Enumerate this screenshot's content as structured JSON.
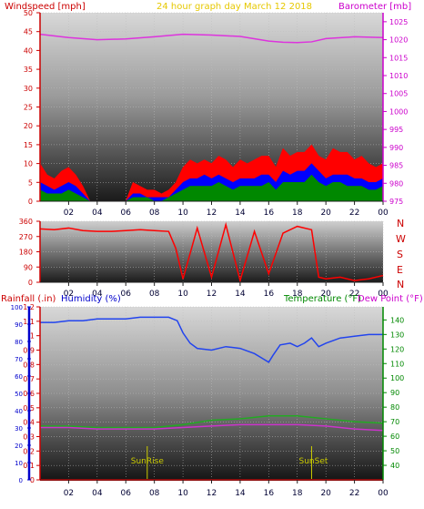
{
  "colors": {
    "wind_axis": "#cc0000",
    "baro_axis": "#cc00cc",
    "title": "#e6c800",
    "humidity_axis": "#0000cc",
    "rain_axis": "#cc0000",
    "temp_axis": "#008800",
    "wind_speed": "#ff0000",
    "wind_avg": "#0000ff",
    "wind_low": "#008800",
    "barometer": "#dd33dd",
    "direction": "#ff0000",
    "humidity": "#2244ee",
    "temperature": "#22aa22",
    "dewpoint": "#cc33cc",
    "sun_marker": "#cccc00"
  },
  "panel1": {
    "title": "24 hour graph day   March 12 2018",
    "left_label": "Windspeed [mph]",
    "right_label": "Barometer [mb]"
  },
  "panel2": {
    "direction_labels": [
      "N",
      "W",
      "S",
      "E",
      "N"
    ]
  },
  "panel3": {
    "rain_label": "Rainfall (.in)",
    "humidity_label": "Humidity (%)",
    "temp_label": "Temperature (°F)",
    "dew_label": "Dew Point (°F)",
    "sunrise_label": "SunRise",
    "sunset_label": "SunSet"
  },
  "chart_data": [
    {
      "type": "area",
      "title": "24 hour graph day   March 12 2018",
      "ylabel": "Windspeed [mph]",
      "ylim": [
        0,
        50
      ],
      "y_ticks": [
        0,
        5,
        10,
        15,
        20,
        25,
        30,
        35,
        40,
        45,
        50
      ],
      "y2label": "Barometer [mb]",
      "y2lim": [
        975,
        1027.5
      ],
      "y2_ticks": [
        975,
        980,
        985,
        990,
        995,
        1000,
        1005,
        1010,
        1015,
        1020,
        1025
      ],
      "x_ticks": [
        "02",
        "04",
        "06",
        "08",
        "10",
        "12",
        "14",
        "16",
        "18",
        "20",
        "22",
        "00"
      ],
      "xlim": [
        0,
        24
      ],
      "series": [
        {
          "axis": "y",
          "x": [
            0,
            0.5,
            1,
            1.5,
            2,
            2.5,
            3,
            3.5,
            4,
            4.5,
            5,
            5.5,
            6,
            6.5,
            7,
            7.5,
            8,
            8.5,
            9,
            9.5,
            10,
            10.5,
            11,
            11.5,
            12,
            12.5,
            13,
            13.5,
            14,
            14.5,
            15,
            15.5,
            16,
            16.5,
            17,
            17.5,
            18,
            18.5,
            19,
            19.5,
            20,
            20.5,
            21,
            21.5,
            22,
            22.5,
            23,
            23.5,
            24
          ],
          "values": [
            10,
            7,
            6,
            8,
            9,
            7,
            4,
            0,
            0,
            0,
            0,
            0,
            0,
            5,
            4,
            3,
            3,
            2,
            3,
            5,
            9,
            11,
            10,
            11,
            10,
            12,
            11,
            9,
            11,
            10,
            11,
            12,
            12,
            9,
            14,
            12,
            13,
            13,
            15,
            12,
            11,
            14,
            13,
            13,
            11,
            12,
            10,
            9,
            10
          ]
        },
        {
          "axis": "y",
          "x": [
            0,
            0.5,
            1,
            1.5,
            2,
            2.5,
            3,
            3.5,
            4,
            4.5,
            5,
            5.5,
            6,
            6.5,
            7,
            7.5,
            8,
            8.5,
            9,
            9.5,
            10,
            10.5,
            11,
            11.5,
            12,
            12.5,
            13,
            13.5,
            14,
            14.5,
            15,
            15.5,
            16,
            16.5,
            17,
            17.5,
            18,
            18.5,
            19,
            19.5,
            20,
            20.5,
            21,
            21.5,
            22,
            22.5,
            23,
            23.5,
            24
          ],
          "values": [
            5,
            4,
            3,
            4,
            5,
            4,
            2,
            0,
            0,
            0,
            0,
            0,
            0,
            2,
            2,
            1,
            1,
            1,
            1,
            3,
            5,
            6,
            6,
            7,
            6,
            7,
            6,
            5,
            6,
            6,
            6,
            7,
            7,
            5,
            8,
            7,
            8,
            8,
            10,
            8,
            6,
            7,
            7,
            7,
            6,
            6,
            5,
            5,
            6
          ]
        },
        {
          "axis": "y",
          "x": [
            0,
            0.5,
            1,
            1.5,
            2,
            2.5,
            3,
            3.5,
            4,
            4.5,
            5,
            5.5,
            6,
            6.5,
            7,
            7.5,
            8,
            8.5,
            9,
            9.5,
            10,
            10.5,
            11,
            11.5,
            12,
            12.5,
            13,
            13.5,
            14,
            14.5,
            15,
            15.5,
            16,
            16.5,
            17,
            17.5,
            18,
            18.5,
            19,
            19.5,
            20,
            20.5,
            21,
            21.5,
            22,
            22.5,
            23,
            23.5,
            24
          ],
          "values": [
            3,
            2,
            2,
            2,
            3,
            2,
            1,
            0,
            0,
            0,
            0,
            0,
            0,
            1,
            1,
            1,
            0,
            0,
            1,
            2,
            3,
            4,
            4,
            4,
            4,
            5,
            4,
            3,
            4,
            4,
            4,
            4,
            5,
            3,
            5,
            5,
            5,
            5,
            7,
            5,
            4,
            5,
            5,
            4,
            4,
            4,
            3,
            3,
            4
          ]
        },
        {
          "axis": "y2",
          "x": [
            0,
            2,
            4,
            6,
            8,
            10,
            12,
            14,
            16,
            17,
            18,
            19,
            20,
            22,
            24
          ],
          "values": [
            1021.5,
            1020.6,
            1020.0,
            1020.2,
            1020.8,
            1021.5,
            1021.3,
            1020.9,
            1019.6,
            1019.3,
            1019.2,
            1019.4,
            1020.3,
            1020.8,
            1020.6
          ]
        }
      ]
    },
    {
      "type": "line",
      "ylim": [
        0,
        360
      ],
      "y_ticks": [
        0,
        90,
        180,
        270,
        360
      ],
      "x_ticks": [
        "02",
        "04",
        "06",
        "08",
        "10",
        "12",
        "14",
        "16",
        "18",
        "20",
        "22",
        "00"
      ],
      "xlim": [
        0,
        24
      ],
      "series": [
        {
          "x": [
            0,
            1,
            2,
            3,
            4,
            5,
            6,
            7,
            8,
            9,
            9.5,
            10,
            11,
            12,
            13,
            14,
            15,
            16,
            17,
            18,
            19,
            19.5,
            20,
            21,
            22,
            23,
            24
          ],
          "values": [
            315,
            310,
            320,
            305,
            300,
            300,
            305,
            310,
            305,
            300,
            200,
            20,
            320,
            30,
            340,
            10,
            300,
            50,
            290,
            330,
            310,
            30,
            20,
            30,
            10,
            20,
            40
          ]
        }
      ]
    },
    {
      "type": "line",
      "ylabel": "Humidity (%)",
      "ylim": [
        0,
        100
      ],
      "y_ticks": [
        0,
        10,
        20,
        30,
        40,
        50,
        60,
        70,
        80,
        90,
        100
      ],
      "rain_label": "Rainfall (.in)",
      "rain_lim": [
        0,
        1.2
      ],
      "rain_ticks": [
        0,
        0.1,
        0.2,
        0.3,
        0.4,
        0.5,
        0.6,
        0.7,
        0.8,
        0.9,
        1,
        1.1,
        1.2
      ],
      "y2label": "Temperature (°F)",
      "y2lim": [
        30,
        149
      ],
      "y2_ticks": [
        40,
        50,
        60,
        70,
        80,
        90,
        100,
        110,
        120,
        130,
        140
      ],
      "x_ticks": [
        "02",
        "04",
        "06",
        "08",
        "10",
        "12",
        "14",
        "16",
        "18",
        "20",
        "22",
        "00"
      ],
      "xlim": [
        0,
        24
      ],
      "annotations": [
        "SunRise",
        "SunSet"
      ],
      "sunrise_x": 7.5,
      "sunset_x": 19.0,
      "series": [
        {
          "axis": "y",
          "x": [
            0,
            1,
            2,
            3,
            4,
            5,
            6,
            7,
            8,
            9,
            9.6,
            10,
            10.5,
            11,
            12,
            13,
            14,
            15,
            15.6,
            16,
            16.3,
            16.8,
            17.5,
            18,
            18.5,
            19,
            19.5,
            20,
            21,
            22,
            23,
            24
          ],
          "values": [
            91,
            91,
            92,
            92,
            93,
            93,
            93,
            94,
            94,
            94,
            92,
            85,
            79,
            76,
            75,
            77,
            76,
            73,
            70,
            68,
            72,
            78,
            79,
            77,
            79,
            82,
            77,
            79,
            82,
            83,
            84,
            84
          ]
        },
        {
          "axis": "y2",
          "x": [
            0,
            2,
            4,
            6,
            8,
            10,
            12,
            14,
            16,
            18,
            20,
            22,
            24
          ],
          "values": [
            67,
            67,
            66,
            66,
            66,
            68,
            71,
            72,
            74,
            74,
            72,
            70,
            69
          ]
        },
        {
          "axis": "y2",
          "x": [
            0,
            2,
            4,
            6,
            8,
            10,
            12,
            14,
            16,
            18,
            20,
            22,
            24
          ],
          "values": [
            66,
            66,
            65,
            65,
            65,
            66,
            67,
            68,
            68,
            68,
            67,
            65,
            64
          ]
        },
        {
          "axis": "rain",
          "x": [
            0,
            24
          ],
          "values": [
            0,
            0
          ]
        }
      ]
    }
  ]
}
